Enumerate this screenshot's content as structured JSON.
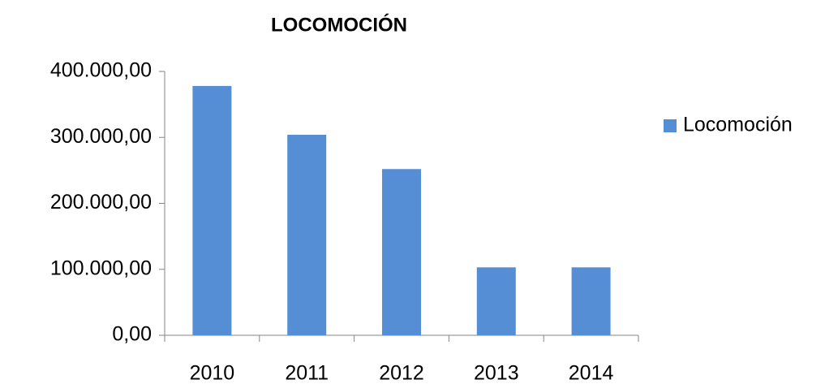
{
  "chart_data": {
    "type": "bar",
    "title": "LOCOMOCIÓN",
    "categories": [
      "2010",
      "2011",
      "2012",
      "2013",
      "2014"
    ],
    "series": [
      {
        "name": "Locomoción",
        "color": "#558ed5",
        "values": [
          378000,
          304000,
          252000,
          103000,
          103000
        ]
      }
    ],
    "ylim": [
      0,
      400000
    ],
    "yticks": [
      {
        "value": 0,
        "label": "0,00"
      },
      {
        "value": 100000,
        "label": "100.000,00"
      },
      {
        "value": 200000,
        "label": "200.000,00"
      },
      {
        "value": 300000,
        "label": "300.000,00"
      },
      {
        "value": 400000,
        "label": "400.000,00"
      }
    ],
    "grid": false,
    "legend": "right"
  }
}
